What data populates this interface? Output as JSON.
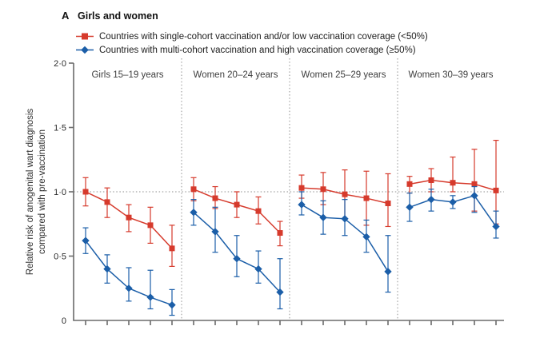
{
  "chart_data": {
    "type": "line",
    "panel_letter": "A",
    "title": "Girls and women",
    "ylabel_line1": "Relative risk of anogenital wart diagnosis",
    "ylabel_line2": "compared with pre-vaccination",
    "ylim": [
      0,
      2
    ],
    "yticks": [
      0,
      0.5,
      1.0,
      1.5,
      2.0
    ],
    "ytick_labels": [
      "0",
      "0·5",
      "1·0",
      "1·5",
      "2·0"
    ],
    "reference_line_y": 1.0,
    "grid": false,
    "legend_position": "top-left",
    "colors": {
      "single_cohort": "#d63a2c",
      "multi_cohort": "#1b5ea8",
      "axis": "#6b6b6b",
      "dotted": "#a3a3a3",
      "text": "#2b2b2b"
    },
    "legend": [
      {
        "label": "Countries with single-cohort vaccination and/or low vaccination coverage (<50%)",
        "marker": "square",
        "color": "#d63a2c"
      },
      {
        "label": "Countries with multi-cohort vaccination and high vaccination coverage (≥50%)",
        "marker": "diamond",
        "color": "#1b5ea8"
      }
    ],
    "panels": [
      {
        "label": "Girls 15–19 years",
        "series": [
          {
            "name": "single-cohort / low coverage",
            "values": [
              1.0,
              0.92,
              0.8,
              0.74,
              0.56
            ],
            "ci_low": [
              0.89,
              0.8,
              0.69,
              0.6,
              0.42
            ],
            "ci_high": [
              1.11,
              1.03,
              0.9,
              0.88,
              0.74
            ]
          },
          {
            "name": "multi-cohort / high coverage",
            "values": [
              0.62,
              0.4,
              0.25,
              0.18,
              0.12
            ],
            "ci_low": [
              0.52,
              0.29,
              0.15,
              0.09,
              0.04
            ],
            "ci_high": [
              0.72,
              0.51,
              0.41,
              0.39,
              0.24
            ]
          }
        ]
      },
      {
        "label": "Women 20–24 years",
        "series": [
          {
            "name": "single-cohort / low coverage",
            "values": [
              1.02,
              0.95,
              0.9,
              0.85,
              0.68
            ],
            "ci_low": [
              0.93,
              0.87,
              0.8,
              0.75,
              0.58
            ],
            "ci_high": [
              1.11,
              1.04,
              1.0,
              0.96,
              0.77
            ]
          },
          {
            "name": "multi-cohort / high coverage",
            "values": [
              0.84,
              0.69,
              0.48,
              0.4,
              0.22
            ],
            "ci_low": [
              0.74,
              0.53,
              0.34,
              0.29,
              0.09
            ],
            "ci_high": [
              0.94,
              0.88,
              0.66,
              0.54,
              0.48
            ]
          }
        ]
      },
      {
        "label": "Women 25–29 years",
        "series": [
          {
            "name": "single-cohort / low coverage",
            "values": [
              1.03,
              1.02,
              0.98,
              0.95,
              0.91
            ],
            "ci_low": [
              0.95,
              0.9,
              0.79,
              0.74,
              0.73
            ],
            "ci_high": [
              1.13,
              1.15,
              1.17,
              1.16,
              1.14
            ]
          },
          {
            "name": "multi-cohort / high coverage",
            "values": [
              0.9,
              0.8,
              0.79,
              0.65,
              0.38
            ],
            "ci_low": [
              0.82,
              0.67,
              0.66,
              0.53,
              0.22
            ],
            "ci_high": [
              1.0,
              0.93,
              0.94,
              0.78,
              0.66
            ]
          }
        ]
      },
      {
        "label": "Women 30–39 years",
        "series": [
          {
            "name": "single-cohort / low coverage",
            "values": [
              1.06,
              1.09,
              1.07,
              1.06,
              1.01
            ],
            "ci_low": [
              0.99,
              1.0,
              1.0,
              0.85,
              0.75
            ],
            "ci_high": [
              1.12,
              1.18,
              1.27,
              1.33,
              1.4
            ]
          },
          {
            "name": "multi-cohort / high coverage",
            "values": [
              0.88,
              0.94,
              0.92,
              0.97,
              0.73
            ],
            "ci_low": [
              0.77,
              0.85,
              0.87,
              0.84,
              0.64
            ],
            "ci_high": [
              0.99,
              1.02,
              0.97,
              1.04,
              0.85
            ]
          }
        ]
      }
    ]
  }
}
